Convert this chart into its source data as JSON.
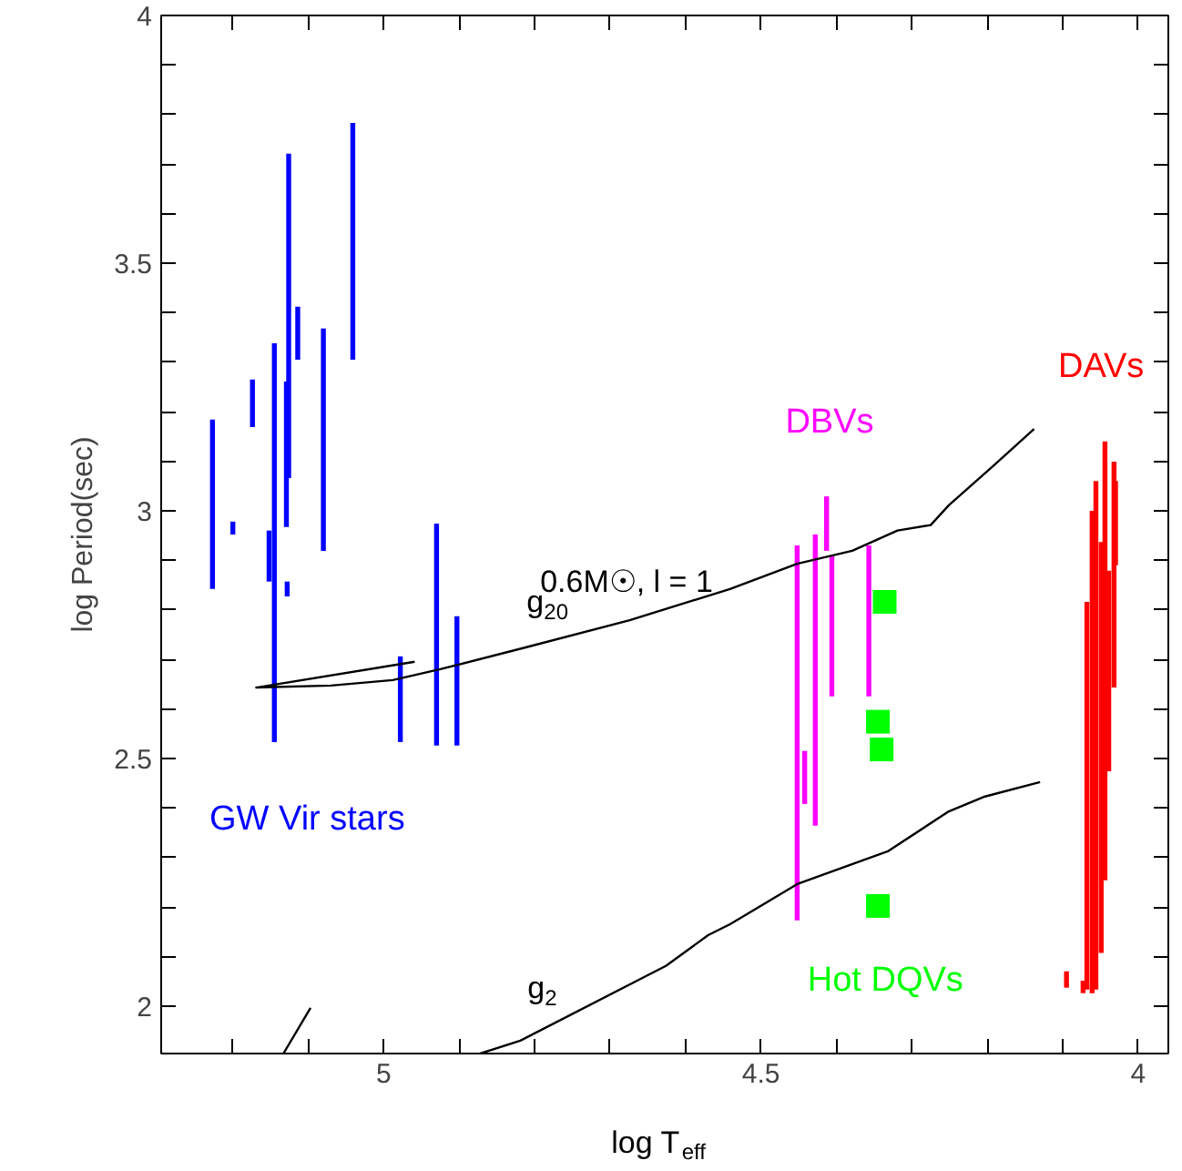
{
  "chart_data": {
    "type": "bar",
    "xlabel": "log T$_{eff}$",
    "ylabel": "log Period(sec)",
    "xlim": [
      5.295,
      3.96
    ],
    "ylim": [
      1.904,
      4.0
    ],
    "xticks": [
      {
        "value": 5.2,
        "label": null
      },
      {
        "value": 5.1,
        "label": null
      },
      5,
      {
        "value": 4.9,
        "label": null
      },
      {
        "value": 4.8,
        "label": null
      },
      {
        "value": 4.7,
        "label": null
      },
      {
        "value": 4.6,
        "label": null
      },
      4.5,
      {
        "value": 4.4,
        "label": null
      },
      {
        "value": 4.3,
        "label": null
      },
      {
        "value": 4.2,
        "label": null
      },
      {
        "value": 4.1,
        "label": null
      },
      4
    ],
    "yticks": [
      2,
      {
        "value": 2.1,
        "label": null
      },
      {
        "value": 2.2,
        "label": null
      },
      {
        "value": 2.3,
        "label": null
      },
      {
        "value": 2.4,
        "label": null
      },
      2.5,
      {
        "value": 2.6,
        "label": null
      },
      {
        "value": 2.7,
        "label": null
      },
      {
        "value": 2.8,
        "label": null
      },
      {
        "value": 2.9,
        "label": null
      },
      3,
      {
        "value": 3.1,
        "label": null
      },
      {
        "value": 3.2,
        "label": null
      },
      {
        "value": 3.3,
        "label": null
      },
      {
        "value": 3.4,
        "label": null
      },
      3.5,
      {
        "value": 3.6,
        "label": null
      },
      {
        "value": 3.7,
        "label": null
      },
      {
        "value": 3.8,
        "label": null
      },
      {
        "value": 3.9,
        "label": null
      },
      4
    ],
    "grid": false,
    "legend": false,
    "series": [
      {
        "name": "GW Vir stars",
        "color": "#0000ff",
        "x": [
          5.227,
          5.2,
          5.174,
          5.152,
          5.145,
          5.129,
          5.128,
          5.126,
          5.114,
          5.08,
          5.041,
          4.978,
          4.93,
          4.903
        ],
        "base": [
          2.842,
          2.952,
          3.169,
          2.857,
          2.533,
          2.967,
          2.827,
          3.066,
          3.305,
          2.919,
          3.305,
          2.533,
          2.526,
          2.526
        ],
        "values": [
          0.342,
          0.026,
          0.096,
          0.103,
          0.805,
          0.294,
          0.03,
          0.655,
          0.107,
          0.449,
          0.478,
          0.173,
          0.448,
          0.261
        ]
      },
      {
        "name": "DBVs",
        "color": "#ff00ff",
        "x": [
          4.452,
          4.442,
          4.428,
          4.413,
          4.406,
          4.357
        ],
        "base": [
          2.173,
          2.408,
          2.364,
          2.919,
          2.625,
          2.625
        ],
        "values": [
          0.757,
          0.107,
          0.588,
          0.11,
          0.283,
          0.305
        ]
      },
      {
        "type": "scatter",
        "name": "Hot DQVs",
        "color": "#00ff00",
        "marker": "square",
        "x": [
          4.336,
          4.345,
          4.34,
          4.345
        ],
        "values": [
          2.816,
          2.574,
          2.518,
          2.202
        ]
      },
      {
        "name": "DAVs",
        "color": "#ff0000",
        "x": [
          4.095,
          4.073,
          4.068,
          4.061,
          4.056,
          4.049,
          4.044,
          4.039,
          4.032,
          4.03
        ],
        "base": [
          2.037,
          2.026,
          2.033,
          2.026,
          2.033,
          2.107,
          2.254,
          2.474,
          2.643,
          2.89
        ],
        "values": [
          0.033,
          0.025,
          0.783,
          0.974,
          1.027,
          0.83,
          0.886,
          0.405,
          0.456,
          0.17
        ]
      },
      {
        "type": "line",
        "color": "#000000",
        "x": [
          4.959,
          5.169,
          5.07,
          4.988,
          4.925,
          4.812,
          4.674,
          4.541,
          4.452,
          4.379,
          4.319,
          4.275,
          4.251,
          4.191,
          4.138
        ],
        "values": [
          2.695,
          2.643,
          2.647,
          2.658,
          2.68,
          2.724,
          2.779,
          2.842,
          2.893,
          2.919,
          2.96,
          2.971,
          3.011,
          3.092,
          3.165
        ]
      },
      {
        "type": "line",
        "color": "#000000",
        "x": [
          4.872,
          4.819,
          4.626,
          4.57,
          4.541,
          4.452,
          4.331,
          4.251,
          4.203,
          4.13
        ],
        "values": [
          1.904,
          1.93,
          2.081,
          2.143,
          2.165,
          2.246,
          2.313,
          2.393,
          2.423,
          2.452
        ]
      },
      {
        "type": "line",
        "color": "#000000",
        "x": [
          5.133,
          5.097
        ],
        "values": [
          1.904,
          1.996
        ]
      }
    ],
    "annotations": [
      {
        "text": "0.6M☉,  l = 1",
        "x": 4.686,
        "y": 2.776
      },
      {
        "text": "g$_{20}$",
        "x": 4.783,
        "y": 2.735
      },
      {
        "text": "g$_{2}$",
        "x": 4.79,
        "y": 1.955
      }
    ]
  }
}
